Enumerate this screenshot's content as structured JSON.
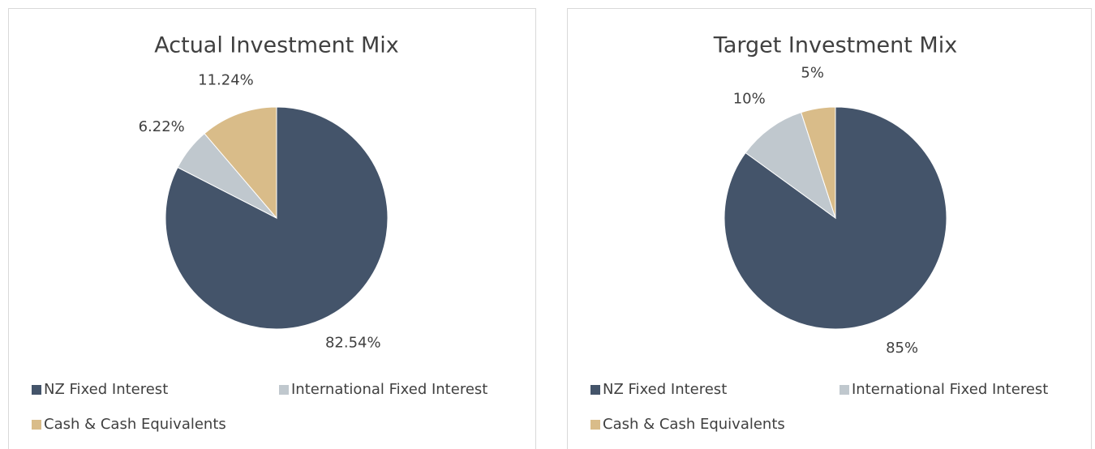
{
  "chart_data": [
    {
      "type": "pie",
      "title": "Actual Investment Mix",
      "categories": [
        "NZ Fixed Interest",
        "International Fixed Interest",
        "Cash & Cash Equivalents"
      ],
      "values": [
        82.54,
        6.22,
        11.24
      ],
      "value_labels": [
        "82.54%",
        "6.22%",
        "11.24%"
      ],
      "colors": [
        "#44546a",
        "#c0c8ce",
        "#d9bc89"
      ],
      "legend": "bottom"
    },
    {
      "type": "pie",
      "title": "Target Investment Mix",
      "categories": [
        "NZ Fixed Interest",
        "International Fixed Interest",
        "Cash & Cash Equivalents"
      ],
      "values": [
        85,
        10,
        5
      ],
      "value_labels": [
        "85%",
        "10%",
        "5%"
      ],
      "colors": [
        "#44546a",
        "#c0c8ce",
        "#d9bc89"
      ],
      "legend": "bottom"
    }
  ]
}
